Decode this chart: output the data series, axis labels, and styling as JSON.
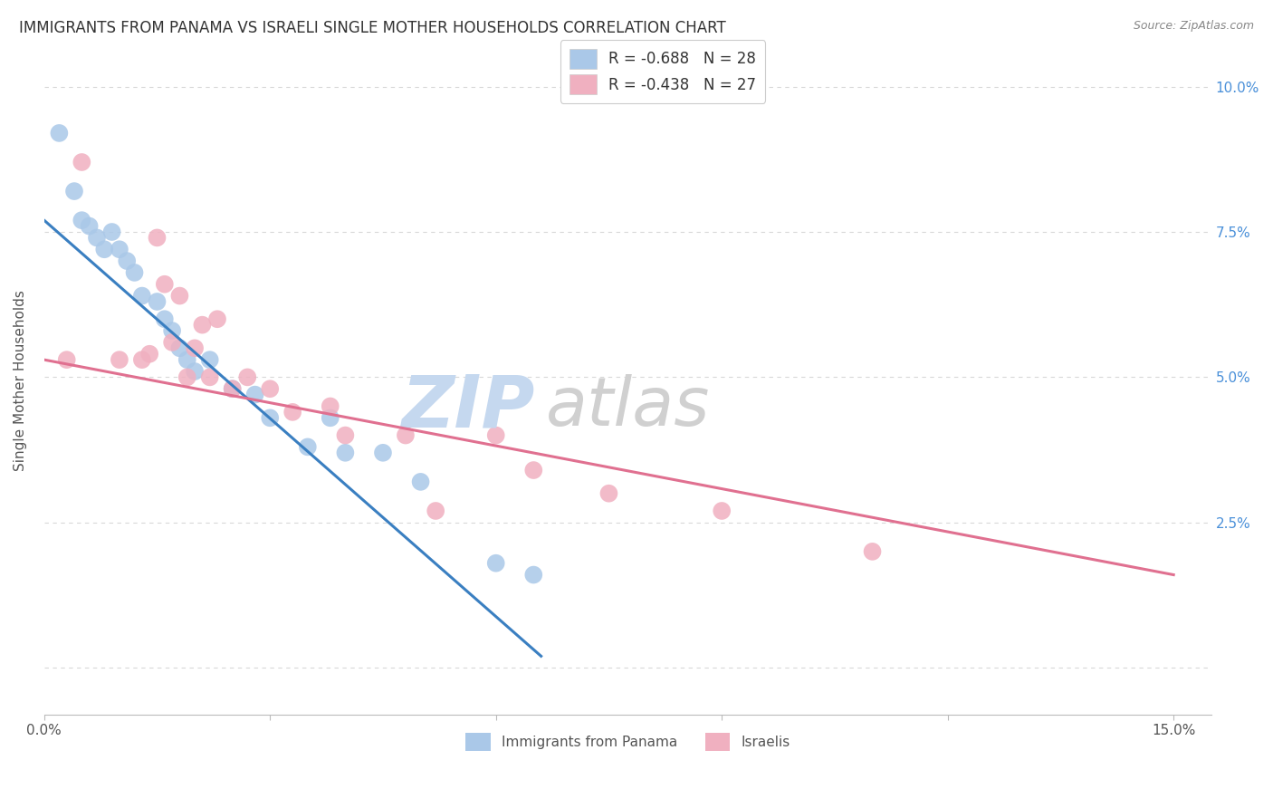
{
  "title": "IMMIGRANTS FROM PANAMA VS ISRAELI SINGLE MOTHER HOUSEHOLDS CORRELATION CHART",
  "source": "Source: ZipAtlas.com",
  "ylabel": "Single Mother Households",
  "legend_entries": [
    {
      "label": "R = -0.688   N = 28",
      "color": "#aec6e8"
    },
    {
      "label": "R = -0.438   N = 27",
      "color": "#f4b8c8"
    }
  ],
  "legend_bottom": [
    {
      "label": "Immigrants from Panama",
      "color": "#aec6e8"
    },
    {
      "label": "Israelis",
      "color": "#f4b8c8"
    }
  ],
  "blue_scatter_x": [
    0.002,
    0.004,
    0.005,
    0.006,
    0.007,
    0.008,
    0.009,
    0.01,
    0.011,
    0.012,
    0.013,
    0.015,
    0.016,
    0.017,
    0.018,
    0.019,
    0.02,
    0.022,
    0.025,
    0.028,
    0.03,
    0.035,
    0.038,
    0.04,
    0.045,
    0.05,
    0.06,
    0.065
  ],
  "blue_scatter_y": [
    0.092,
    0.082,
    0.077,
    0.076,
    0.074,
    0.072,
    0.075,
    0.072,
    0.07,
    0.068,
    0.064,
    0.063,
    0.06,
    0.058,
    0.055,
    0.053,
    0.051,
    0.053,
    0.048,
    0.047,
    0.043,
    0.038,
    0.043,
    0.037,
    0.037,
    0.032,
    0.018,
    0.016
  ],
  "pink_scatter_x": [
    0.003,
    0.005,
    0.01,
    0.013,
    0.014,
    0.015,
    0.016,
    0.017,
    0.018,
    0.019,
    0.02,
    0.021,
    0.022,
    0.023,
    0.025,
    0.027,
    0.03,
    0.033,
    0.038,
    0.04,
    0.048,
    0.052,
    0.06,
    0.065,
    0.075,
    0.09,
    0.11
  ],
  "pink_scatter_y": [
    0.053,
    0.087,
    0.053,
    0.053,
    0.054,
    0.074,
    0.066,
    0.056,
    0.064,
    0.05,
    0.055,
    0.059,
    0.05,
    0.06,
    0.048,
    0.05,
    0.048,
    0.044,
    0.045,
    0.04,
    0.04,
    0.027,
    0.04,
    0.034,
    0.03,
    0.027,
    0.02
  ],
  "blue_line_x": [
    0.0,
    0.066
  ],
  "blue_line_y": [
    0.077,
    0.002
  ],
  "pink_line_x": [
    0.0,
    0.15
  ],
  "pink_line_y": [
    0.053,
    0.016
  ],
  "blue_color": "#3a7fc1",
  "pink_color": "#e07090",
  "blue_scatter_color": "#aac8e8",
  "pink_scatter_color": "#f0b0c0",
  "background_color": "#ffffff",
  "grid_color": "#d8d8d8",
  "xlim": [
    0.0,
    0.155
  ],
  "ylim": [
    -0.008,
    0.107
  ],
  "x_tick_positions": [
    0.0,
    0.03,
    0.06,
    0.09,
    0.12,
    0.15
  ],
  "x_tick_labels": [
    "0.0%",
    "",
    "",
    "",
    "",
    "15.0%"
  ],
  "y_tick_positions": [
    0.0,
    0.025,
    0.05,
    0.075,
    0.1
  ],
  "y_tick_labels_right": [
    "",
    "2.5%",
    "5.0%",
    "7.5%",
    "10.0%"
  ]
}
